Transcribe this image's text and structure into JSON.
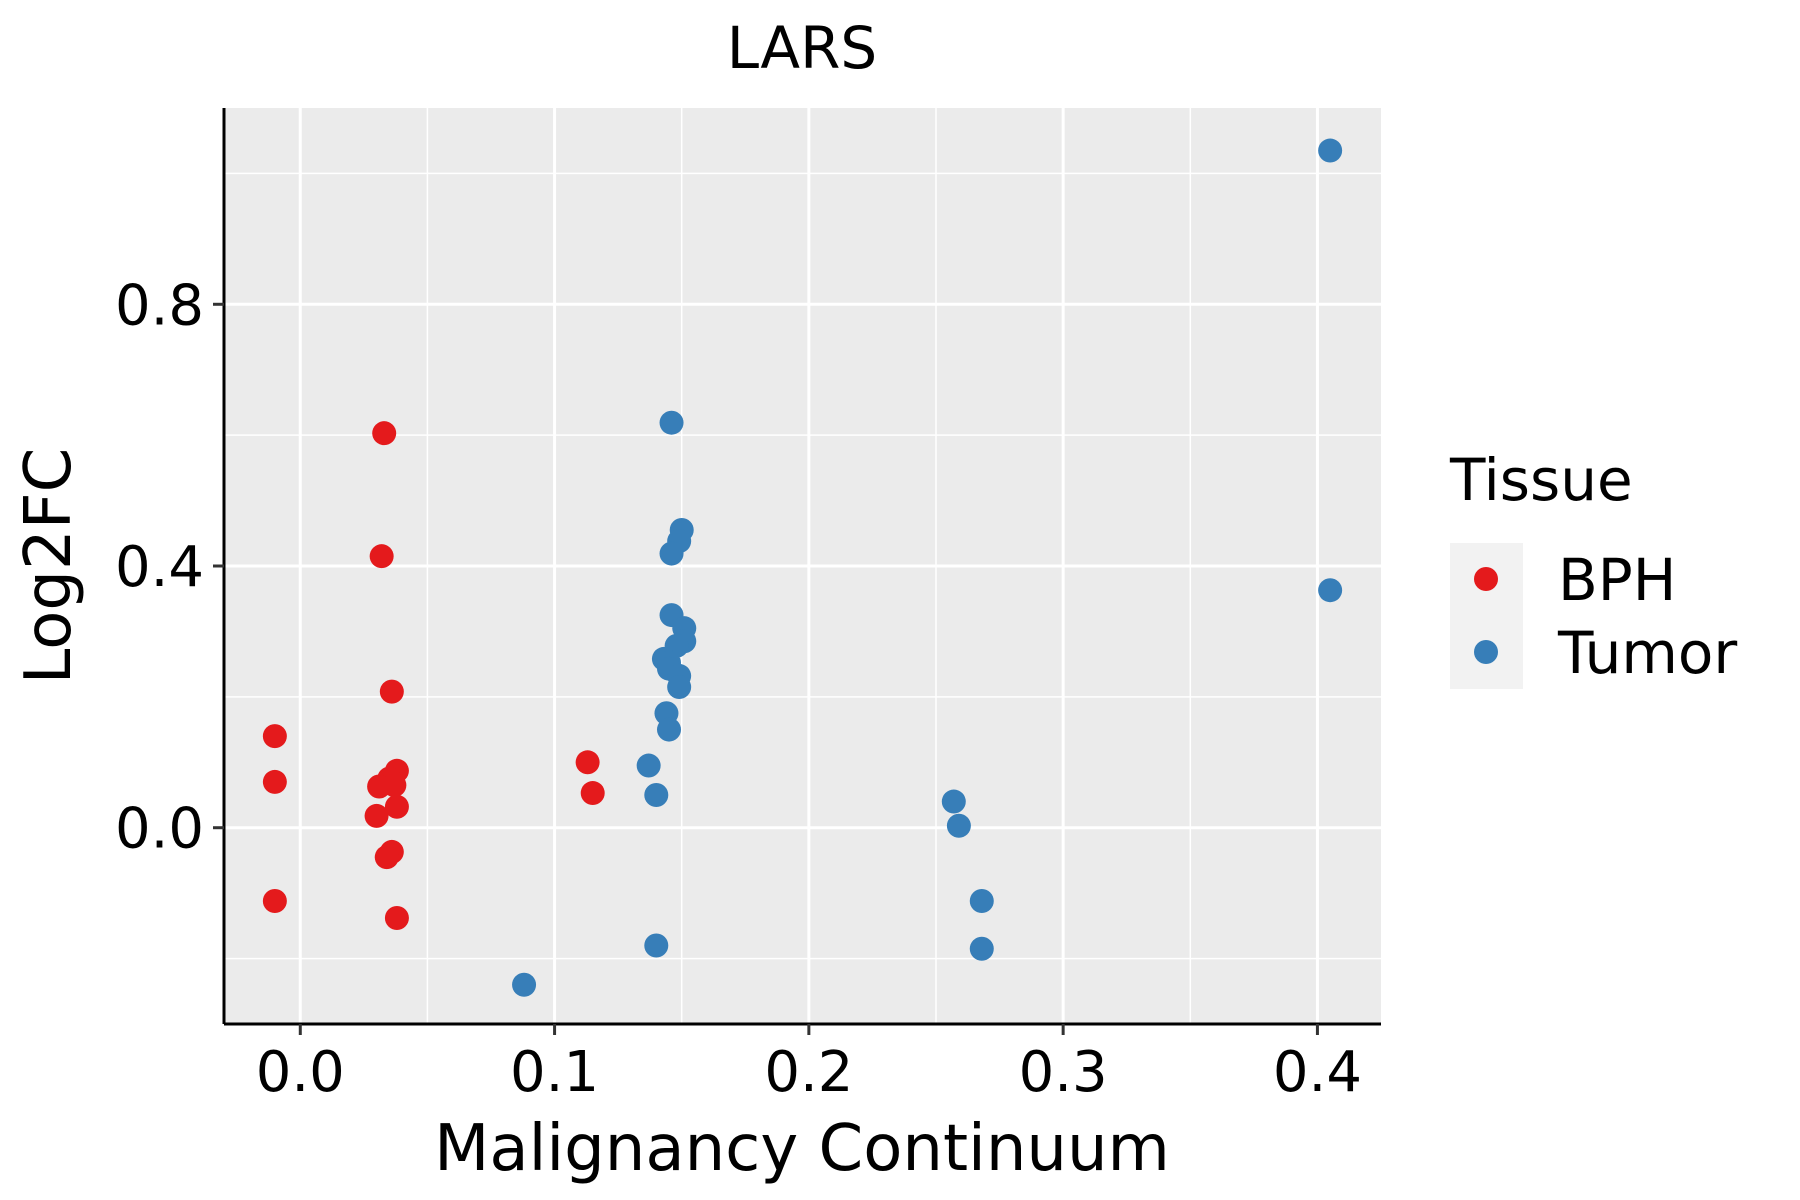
{
  "chart_data": {
    "type": "scatter",
    "title": "LARS",
    "xlabel": "Malignancy Continuum",
    "ylabel": "Log2FC",
    "xlim": [
      -0.03,
      0.425
    ],
    "ylim": [
      -0.3,
      1.1
    ],
    "x_ticks": [
      0.0,
      0.1,
      0.2,
      0.3,
      0.4
    ],
    "x_tick_labels": [
      "0.0",
      "0.1",
      "0.2",
      "0.3",
      "0.4"
    ],
    "y_ticks": [
      0.0,
      0.4,
      0.8
    ],
    "y_tick_labels": [
      "0.0",
      "0.4",
      "0.8"
    ],
    "x_minor": [
      0.05,
      0.15,
      0.25,
      0.35
    ],
    "y_minor": [
      -0.2,
      0.2,
      0.6,
      1.0
    ],
    "legend": {
      "title": "Tissue",
      "position": "right"
    },
    "series": [
      {
        "name": "BPH",
        "color": "#E41A1C",
        "points": [
          {
            "x": -0.01,
            "y": 0.14
          },
          {
            "x": -0.01,
            "y": 0.07
          },
          {
            "x": -0.01,
            "y": -0.112
          },
          {
            "x": 0.033,
            "y": 0.603
          },
          {
            "x": 0.032,
            "y": 0.415
          },
          {
            "x": 0.036,
            "y": 0.208
          },
          {
            "x": 0.038,
            "y": 0.087
          },
          {
            "x": 0.035,
            "y": 0.075
          },
          {
            "x": 0.031,
            "y": 0.063
          },
          {
            "x": 0.037,
            "y": 0.065
          },
          {
            "x": 0.038,
            "y": 0.032
          },
          {
            "x": 0.03,
            "y": 0.018
          },
          {
            "x": 0.036,
            "y": -0.037
          },
          {
            "x": 0.034,
            "y": -0.045
          },
          {
            "x": 0.038,
            "y": -0.138
          },
          {
            "x": 0.113,
            "y": 0.1
          },
          {
            "x": 0.115,
            "y": 0.053
          }
        ]
      },
      {
        "name": "Tumor",
        "color": "#377EB8",
        "points": [
          {
            "x": 0.405,
            "y": 1.035
          },
          {
            "x": 0.405,
            "y": 0.363
          },
          {
            "x": 0.146,
            "y": 0.619
          },
          {
            "x": 0.15,
            "y": 0.455
          },
          {
            "x": 0.149,
            "y": 0.438
          },
          {
            "x": 0.146,
            "y": 0.419
          },
          {
            "x": 0.146,
            "y": 0.325
          },
          {
            "x": 0.151,
            "y": 0.305
          },
          {
            "x": 0.151,
            "y": 0.285
          },
          {
            "x": 0.148,
            "y": 0.278
          },
          {
            "x": 0.143,
            "y": 0.258
          },
          {
            "x": 0.145,
            "y": 0.252
          },
          {
            "x": 0.145,
            "y": 0.243
          },
          {
            "x": 0.149,
            "y": 0.232
          },
          {
            "x": 0.149,
            "y": 0.215
          },
          {
            "x": 0.144,
            "y": 0.175
          },
          {
            "x": 0.145,
            "y": 0.15
          },
          {
            "x": 0.137,
            "y": 0.095
          },
          {
            "x": 0.14,
            "y": 0.05
          },
          {
            "x": 0.14,
            "y": -0.18
          },
          {
            "x": 0.088,
            "y": -0.24
          },
          {
            "x": 0.257,
            "y": 0.04
          },
          {
            "x": 0.259,
            "y": 0.003
          },
          {
            "x": 0.268,
            "y": -0.112
          },
          {
            "x": 0.268,
            "y": -0.185
          }
        ]
      }
    ]
  }
}
